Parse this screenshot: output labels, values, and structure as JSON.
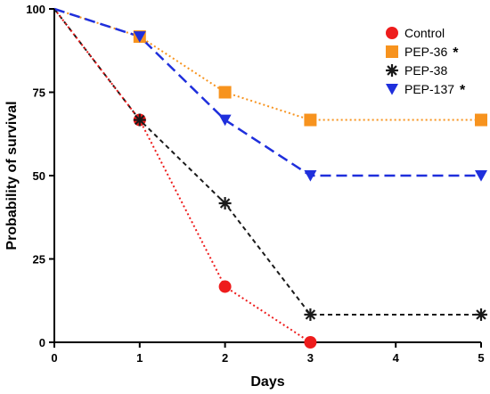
{
  "chart_data": {
    "type": "line",
    "title": "",
    "xlabel": "Days",
    "ylabel": "Probability of survival",
    "xlim": [
      0,
      5
    ],
    "ylim": [
      0,
      100
    ],
    "x_ticks": [
      0,
      1,
      2,
      3,
      4,
      5
    ],
    "y_ticks": [
      0,
      25,
      50,
      75,
      100
    ],
    "grid": false,
    "legend_position": "top-right",
    "series": [
      {
        "name": "Control",
        "annotation": "",
        "color": "#ee1c1c",
        "marker": "circle",
        "line_style": "dotted",
        "x": [
          0,
          1,
          2,
          3
        ],
        "y": [
          100,
          66.7,
          16.7,
          0
        ]
      },
      {
        "name": "PEP-36",
        "annotation": "*",
        "color": "#f7931e",
        "marker": "square",
        "line_style": "dotted",
        "x": [
          0,
          1,
          2,
          3,
          5
        ],
        "y": [
          100,
          91.7,
          75,
          66.7,
          66.7
        ]
      },
      {
        "name": "PEP-38",
        "annotation": "",
        "color": "#1a1a1a",
        "marker": "asterisk",
        "line_style": "dashed",
        "x": [
          0,
          1,
          2,
          3,
          5
        ],
        "y": [
          100,
          66.7,
          41.7,
          8.3,
          8.3
        ]
      },
      {
        "name": "PEP-137",
        "annotation": "*",
        "color": "#1f2fdc",
        "marker": "triangle-down",
        "line_style": "long-dashed",
        "x": [
          0,
          1,
          2,
          3,
          5
        ],
        "y": [
          100,
          91.7,
          66.7,
          50,
          50
        ]
      }
    ]
  }
}
